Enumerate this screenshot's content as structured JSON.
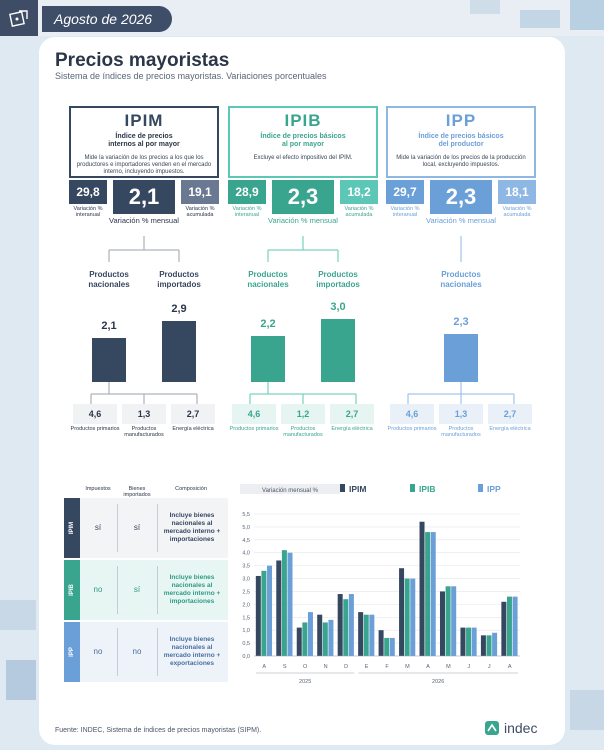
{
  "header": {
    "date": "Agosto de 2026"
  },
  "title": "Precios mayoristas",
  "subtitle": "Sistema de índices de precios mayoristas. Variaciones porcentuales",
  "indices": [
    {
      "name": "IPIM",
      "full": "Índice de precios internos al por mayor",
      "desc": "Mide la variación de los precios a los que los productores e importadores venden en el mercado interno, incluyendo impuestos.",
      "interanual": "29,8",
      "mensual": "2,1",
      "acumulada": "19,1",
      "color": "#364760",
      "light": "#6b7892",
      "products": [
        {
          "label": "Productos nacionales",
          "value": 2.1,
          "value_label": "2,1"
        },
        {
          "label": "Productos importados",
          "value": 2.9,
          "value_label": "2,9"
        }
      ],
      "chips": [
        {
          "value": "4,6",
          "label": "Productos primarios"
        },
        {
          "value": "1,3",
          "label": "Productos manufacturados"
        },
        {
          "value": "2,7",
          "label": "Energía eléctrica"
        }
      ]
    },
    {
      "name": "IPIB",
      "full": "Índice de precios básicos al por mayor",
      "desc": "Excluye el efecto impositivo del IPIM.",
      "interanual": "28,9",
      "mensual": "2,3",
      "acumulada": "18,2",
      "color": "#3aa58f",
      "light": "#5cc7b6",
      "products": [
        {
          "label": "Productos nacionales",
          "value": 2.2,
          "value_label": "2,2"
        },
        {
          "label": "Productos importados",
          "value": 3.0,
          "value_label": "3,0"
        }
      ],
      "chips": [
        {
          "value": "4,6",
          "label": "Productos primarios"
        },
        {
          "value": "1,2",
          "label": "Productos manufacturados"
        },
        {
          "value": "2,7",
          "label": "Energía eléctrica"
        }
      ]
    },
    {
      "name": "IPP",
      "full": "Índice de precios básicos del productor",
      "desc": "Mide la variación de los precios de la producción local, excluyendo impuestos.",
      "interanual": "29,7",
      "mensual": "2,3",
      "acumulada": "18,1",
      "color": "#6a9fd8",
      "light": "#8fb7e3",
      "products": [
        {
          "label": "Productos nacionales",
          "value": 2.3,
          "value_label": "2,3"
        }
      ],
      "chips": [
        {
          "value": "4,6",
          "label": "Productos primarios"
        },
        {
          "value": "1,3",
          "label": "Productos manufacturados"
        },
        {
          "value": "2,7",
          "label": "Energía eléctrica"
        }
      ]
    }
  ],
  "labels": {
    "interanual": "Variación % interanual",
    "mensual": "Variación % mensual",
    "acumulada": "Variación % acumulada"
  },
  "table": {
    "headers": [
      "Impuestos",
      "Bienes importados",
      "Composición"
    ],
    "rows": [
      {
        "name": "IPIM",
        "impuestos": "sí",
        "importados": "sí",
        "composicion": "Incluye bienes nacionales al mercado interno + importaciones",
        "color": "#364760",
        "bg": "#f3f4f6",
        "text": "#364760"
      },
      {
        "name": "IPIB",
        "impuestos": "no",
        "importados": "sí",
        "composicion": "Incluye bienes nacionales al mercado interno + importaciones",
        "color": "#3aa58f",
        "bg": "#e8f6f3",
        "text": "#2e9a86"
      },
      {
        "name": "IPP",
        "impuestos": "no",
        "importados": "no",
        "composicion": "Incluye bienes nacionales al mercado interno + exportaciones",
        "color": "#6a9fd8",
        "bg": "#eef3f9",
        "text": "#4a6fa0"
      }
    ]
  },
  "chart_data": {
    "type": "bar",
    "title": "Variación mensual %",
    "categories": [
      "A",
      "S",
      "O",
      "N",
      "D",
      "E",
      "F",
      "M",
      "A",
      "M",
      "J",
      "J",
      "A"
    ],
    "years": [
      {
        "label": "2025",
        "from": 0,
        "to": 4
      },
      {
        "label": "2026",
        "from": 5,
        "to": 12
      }
    ],
    "ylim": [
      0,
      5.5
    ],
    "yticks": [
      "0,0",
      "0,5",
      "1,0",
      "1,5",
      "2,0",
      "2,5",
      "3,0",
      "3,5",
      "4,0",
      "4,5",
      "5,0",
      "5,5"
    ],
    "series": [
      {
        "name": "IPIM",
        "color": "#364760",
        "values": [
          3.1,
          3.7,
          1.1,
          1.6,
          2.4,
          1.7,
          1.0,
          3.4,
          5.2,
          2.5,
          1.1,
          0.8,
          2.1
        ]
      },
      {
        "name": "IPIB",
        "color": "#3aa58f",
        "values": [
          3.3,
          4.1,
          1.3,
          1.3,
          2.2,
          1.6,
          0.7,
          3.0,
          4.8,
          2.7,
          1.1,
          0.8,
          2.3
        ]
      },
      {
        "name": "IPP",
        "color": "#6a9fd8",
        "values": [
          3.5,
          4.0,
          1.7,
          1.4,
          2.4,
          1.6,
          0.7,
          3.0,
          4.8,
          2.7,
          1.1,
          0.9,
          2.3
        ]
      }
    ]
  },
  "footer": {
    "source": "Fuente: INDEC, Sistema de índices de precios mayoristas (SIPM).",
    "brand": "indec"
  }
}
